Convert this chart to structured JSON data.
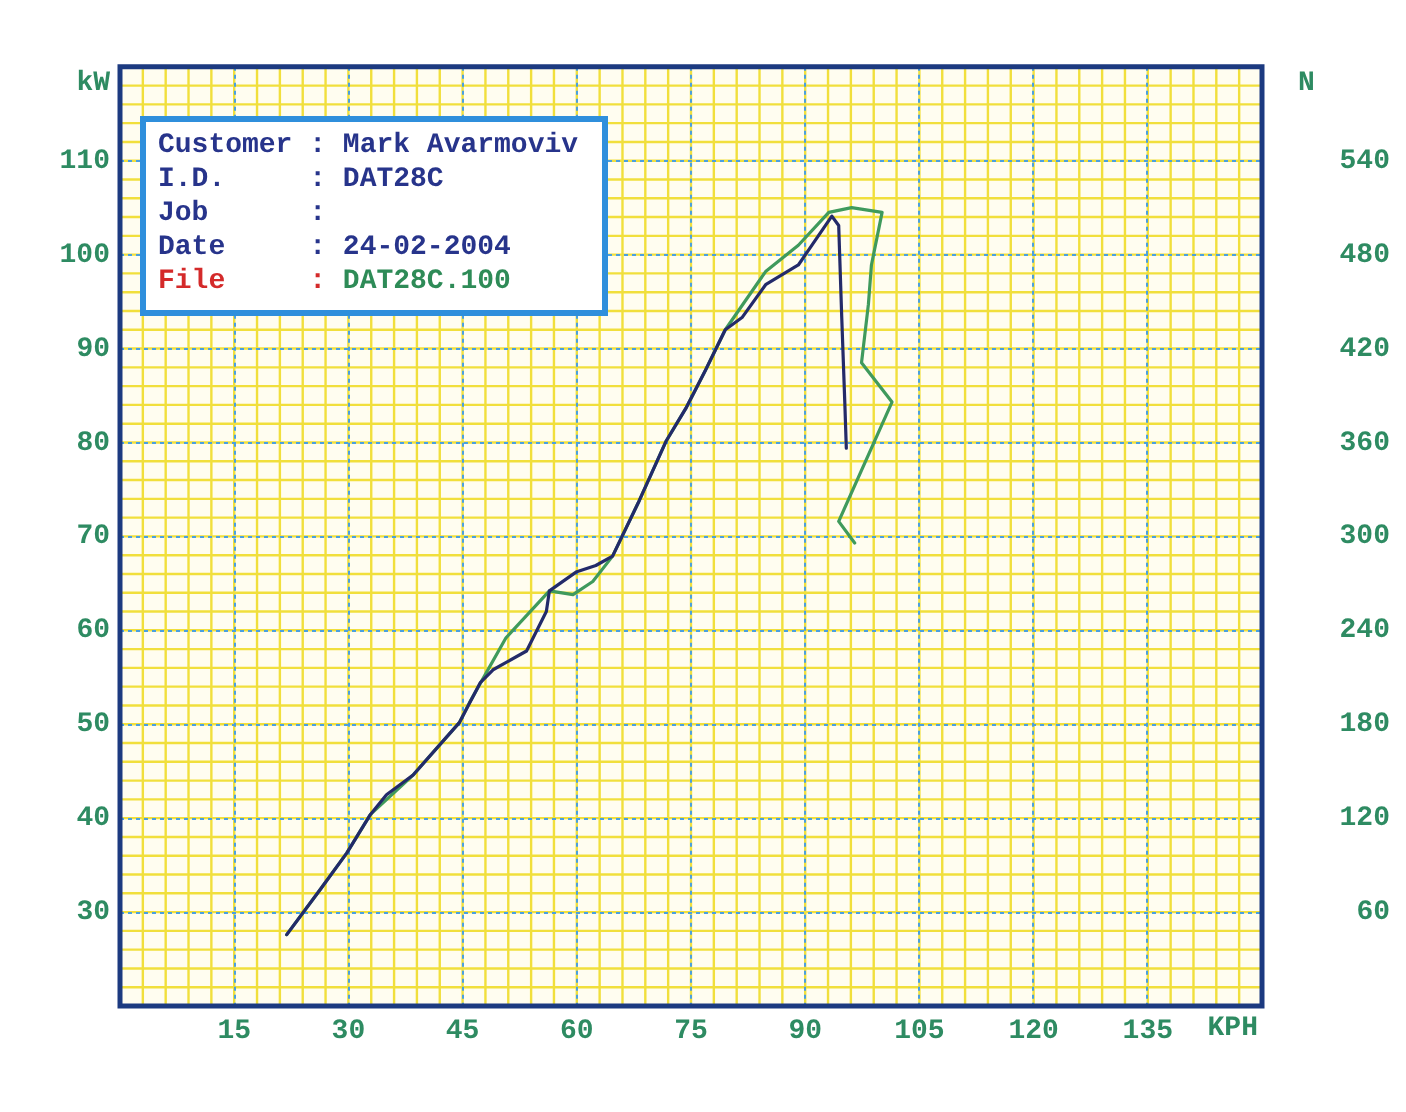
{
  "chart_data": {
    "type": "line",
    "xlabel": "KPH",
    "ylabel": "kW",
    "y2label": "N",
    "annotations": [
      "Customer : Mark Avarmoviv",
      "I.D. : DAT28C",
      "Job :",
      "Date : 24-02-2004",
      "File : DAT28C.100"
    ],
    "xlim": [
      0,
      150
    ],
    "xticks": [
      15,
      30,
      45,
      60,
      75,
      90,
      105,
      120,
      135
    ],
    "ylim": [
      20,
      120
    ],
    "yticks": [
      30,
      40,
      50,
      60,
      70,
      80,
      90,
      100,
      110
    ],
    "y2lim": [
      0,
      600
    ],
    "y2ticks": [
      60,
      120,
      180,
      240,
      300,
      360,
      420,
      480,
      540
    ],
    "grid": true,
    "marker": "none",
    "series": [
      {
        "color": "#232a6a",
        "x": [
          21.9,
          26.3,
          29.8,
          32.9,
          35.0,
          38.5,
          44.6,
          47.3,
          49.0,
          53.4,
          56.0,
          56.4,
          59.9,
          62.5,
          64.7,
          68.2,
          71.7,
          74.3,
          76.9,
          79.5,
          81.7,
          84.8,
          89.1,
          93.5,
          94.4,
          94.8,
          95.2,
          95.4
        ],
        "values": [
          27.6,
          32.4,
          36.3,
          40.4,
          42.5,
          44.6,
          50.2,
          54.4,
          55.8,
          57.8,
          62.0,
          64.2,
          66.2,
          66.9,
          67.9,
          73.8,
          80.1,
          83.6,
          87.7,
          92.0,
          93.3,
          96.8,
          98.9,
          104.1,
          103.1,
          93.3,
          84.3,
          79.4
        ]
      },
      {
        "color": "#3f9a5c",
        "x": [
          21.9,
          26.3,
          29.8,
          32.9,
          38.5,
          44.6,
          45.9,
          50.7,
          56.4,
          59.5,
          62.1,
          64.7,
          68.2,
          71.7,
          74.3,
          76.9,
          79.5,
          84.8,
          89.1,
          93.1,
          96.1,
          100.1,
          98.7,
          98.3,
          97.4,
          101.4,
          94.4,
          96.5
        ],
        "values": [
          27.6,
          32.4,
          36.3,
          40.4,
          44.6,
          50.2,
          52.3,
          59.2,
          64.2,
          63.8,
          65.2,
          67.9,
          73.8,
          80.1,
          83.6,
          87.7,
          92.0,
          98.2,
          101.0,
          104.5,
          105.0,
          104.5,
          98.9,
          94.7,
          88.5,
          84.3,
          71.6,
          69.3
        ]
      }
    ]
  }
}
